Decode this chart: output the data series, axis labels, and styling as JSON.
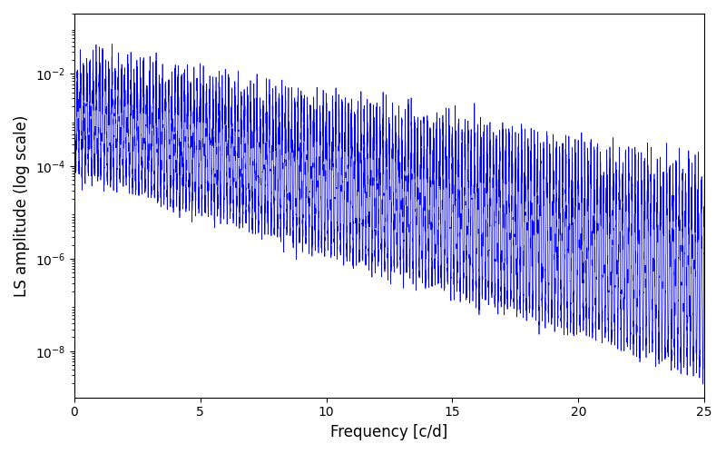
{
  "line_color": "#0000ff",
  "xlabel": "Frequency [c/d]",
  "ylabel": "LS amplitude (log scale)",
  "xlim": [
    0,
    25
  ],
  "ylim": [
    1e-09,
    0.2
  ],
  "yscale": "log",
  "figsize": [
    8.0,
    5.0
  ],
  "dpi": 100,
  "seed": 42,
  "background_color": "#ffffff",
  "yticks": [
    1e-08,
    1e-06,
    0.0001,
    0.01
  ],
  "xticks": [
    0,
    5,
    10,
    15,
    20,
    25
  ],
  "linewidth": 0.5
}
